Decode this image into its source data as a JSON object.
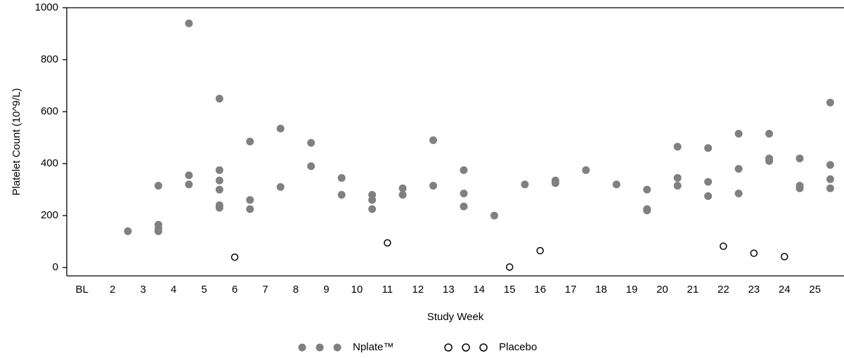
{
  "chart_data": {
    "type": "scatter",
    "x_label": "Study Week",
    "y_label": "Platelet Count (10^9/L)",
    "xlim": [
      0.5,
      25.95
    ],
    "xticks": [
      {
        "value": 1,
        "label": "BL"
      },
      2,
      3,
      4,
      5,
      6,
      7,
      8,
      9,
      10,
      11,
      12,
      13,
      14,
      15,
      16,
      17,
      18,
      19,
      20,
      21,
      22,
      23,
      24,
      25
    ],
    "ylim": [
      -32,
      1000
    ],
    "yticks": [
      0,
      200,
      400,
      600,
      800,
      1000
    ],
    "series": [
      {
        "name": "Nplate™",
        "color": "#808080",
        "filled": true,
        "x": [
          2.5,
          3.5,
          3.5,
          3.5,
          3.5,
          4.5,
          4.5,
          4.5,
          5.5,
          5.5,
          5.5,
          5.5,
          5.5,
          5.5,
          6.5,
          6.5,
          6.5,
          7.5,
          7.5,
          8.5,
          8.5,
          9.5,
          9.5,
          10.5,
          10.5,
          10.5,
          11.5,
          11.5,
          12.5,
          12.5,
          13.5,
          13.5,
          13.5,
          14.5,
          15.5,
          16.5,
          16.5,
          17.5,
          18.5,
          19.5,
          19.5,
          19.5,
          20.5,
          20.5,
          20.5,
          21.5,
          21.5,
          21.5,
          22.5,
          22.5,
          22.5,
          23.5,
          23.5,
          23.5,
          24.5,
          24.5,
          24.5,
          25.5,
          25.5,
          25.5,
          25.5
        ],
        "values": [
          140,
          315,
          165,
          150,
          140,
          940,
          355,
          320,
          650,
          375,
          335,
          300,
          240,
          230,
          485,
          260,
          225,
          535,
          310,
          480,
          390,
          345,
          280,
          280,
          260,
          225,
          305,
          280,
          490,
          315,
          375,
          285,
          235,
          200,
          320,
          335,
          325,
          375,
          320,
          300,
          225,
          220,
          465,
          345,
          315,
          460,
          330,
          275,
          515,
          380,
          285,
          515,
          420,
          410,
          420,
          315,
          305,
          635,
          395,
          340,
          305
        ]
      },
      {
        "name": "Placebo",
        "color": "#000000",
        "filled": false,
        "x": [
          6,
          11,
          15,
          16,
          22,
          23,
          24
        ],
        "values": [
          40,
          95,
          2,
          65,
          82,
          55,
          42
        ]
      }
    ]
  }
}
